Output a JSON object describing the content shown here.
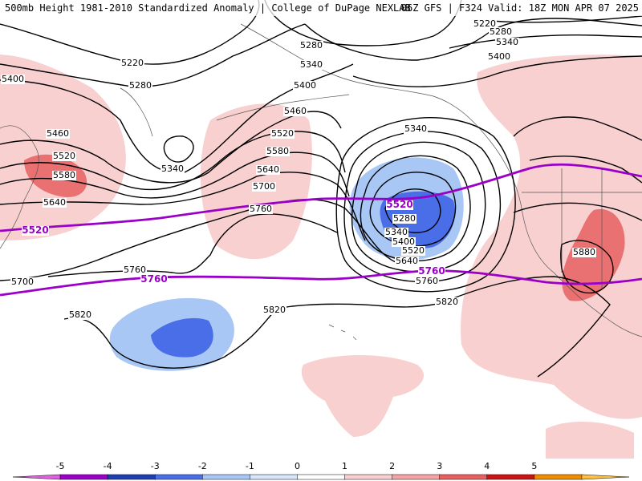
{
  "header": {
    "left": "500mb Height 1981-2010 Standardized Anomaly | College of DuPage NEXLAB",
    "right": "06Z GFS | F324 Valid: 18Z MON APR 07 2025"
  },
  "colorbar": {
    "ticks": [
      "-5",
      "-4",
      "-3",
      "-2",
      "-1",
      "0",
      "1",
      "2",
      "3",
      "4",
      "5"
    ],
    "colors": [
      "#e060e0",
      "#9a00c8",
      "#1f3fb0",
      "#4a6ee8",
      "#a9c7f5",
      "#d6e6fb",
      "#ffffff",
      "#f9d0d0",
      "#f4a4a4",
      "#e86060",
      "#cc1414",
      "#f08c00",
      "#ffc040"
    ]
  },
  "contour_labels": [
    {
      "name": "label-5220-west",
      "text": "5220"
    },
    {
      "name": "label-5280-west",
      "text": "5280"
    },
    {
      "name": "label-5400-west",
      "text": "5400"
    },
    {
      "name": "label-5460-west",
      "text": "5460"
    },
    {
      "name": "label-5520-west",
      "text": "5520"
    },
    {
      "name": "label-5580-west",
      "text": "5580"
    },
    {
      "name": "label-5640-west",
      "text": "5640"
    },
    {
      "name": "label-5700-west",
      "text": "5700"
    },
    {
      "name": "label-5340-mid",
      "text": "5340"
    },
    {
      "name": "label-5460-mid",
      "text": "5460"
    },
    {
      "name": "label-5520-mid",
      "text": "5520"
    },
    {
      "name": "label-5580-mid",
      "text": "5580"
    },
    {
      "name": "label-5640-mid",
      "text": "5640"
    },
    {
      "name": "label-5700-mid",
      "text": "5700"
    },
    {
      "name": "label-5760-mid",
      "text": "5760"
    },
    {
      "name": "label-5760-sw",
      "text": "5760"
    },
    {
      "name": "label-5820-west",
      "text": "5820"
    },
    {
      "name": "label-5820-mid",
      "text": "5820"
    },
    {
      "name": "label-5280-north",
      "text": "5280"
    },
    {
      "name": "label-5340-north",
      "text": "5340"
    },
    {
      "name": "label-5400-north",
      "text": "5400"
    },
    {
      "name": "label-5340-low",
      "text": "5340"
    },
    {
      "name": "label-5280-low",
      "text": "5280"
    },
    {
      "name": "label-5340-low-inner",
      "text": "5340"
    },
    {
      "name": "label-5400-low",
      "text": "5400"
    },
    {
      "name": "label-5520-low",
      "text": "5520"
    },
    {
      "name": "label-5640-low",
      "text": "5640"
    },
    {
      "name": "label-5760-low",
      "text": "5760"
    },
    {
      "name": "label-5820-east",
      "text": "5820"
    },
    {
      "name": "label-5220-ne",
      "text": "5220"
    },
    {
      "name": "label-5280-ne",
      "text": "5280"
    },
    {
      "name": "label-5340-ne",
      "text": "5340"
    },
    {
      "name": "label-5400-ne",
      "text": "5400"
    },
    {
      "name": "label-5880-east",
      "text": "5880"
    }
  ],
  "highlight_labels": [
    {
      "name": "purple-label-5520-west",
      "text": "5520"
    },
    {
      "name": "purple-label-5520-low",
      "text": "5520"
    },
    {
      "name": "purple-label-5760-west",
      "text": "5760"
    },
    {
      "name": "purple-label-5760-east",
      "text": "5760"
    }
  ]
}
